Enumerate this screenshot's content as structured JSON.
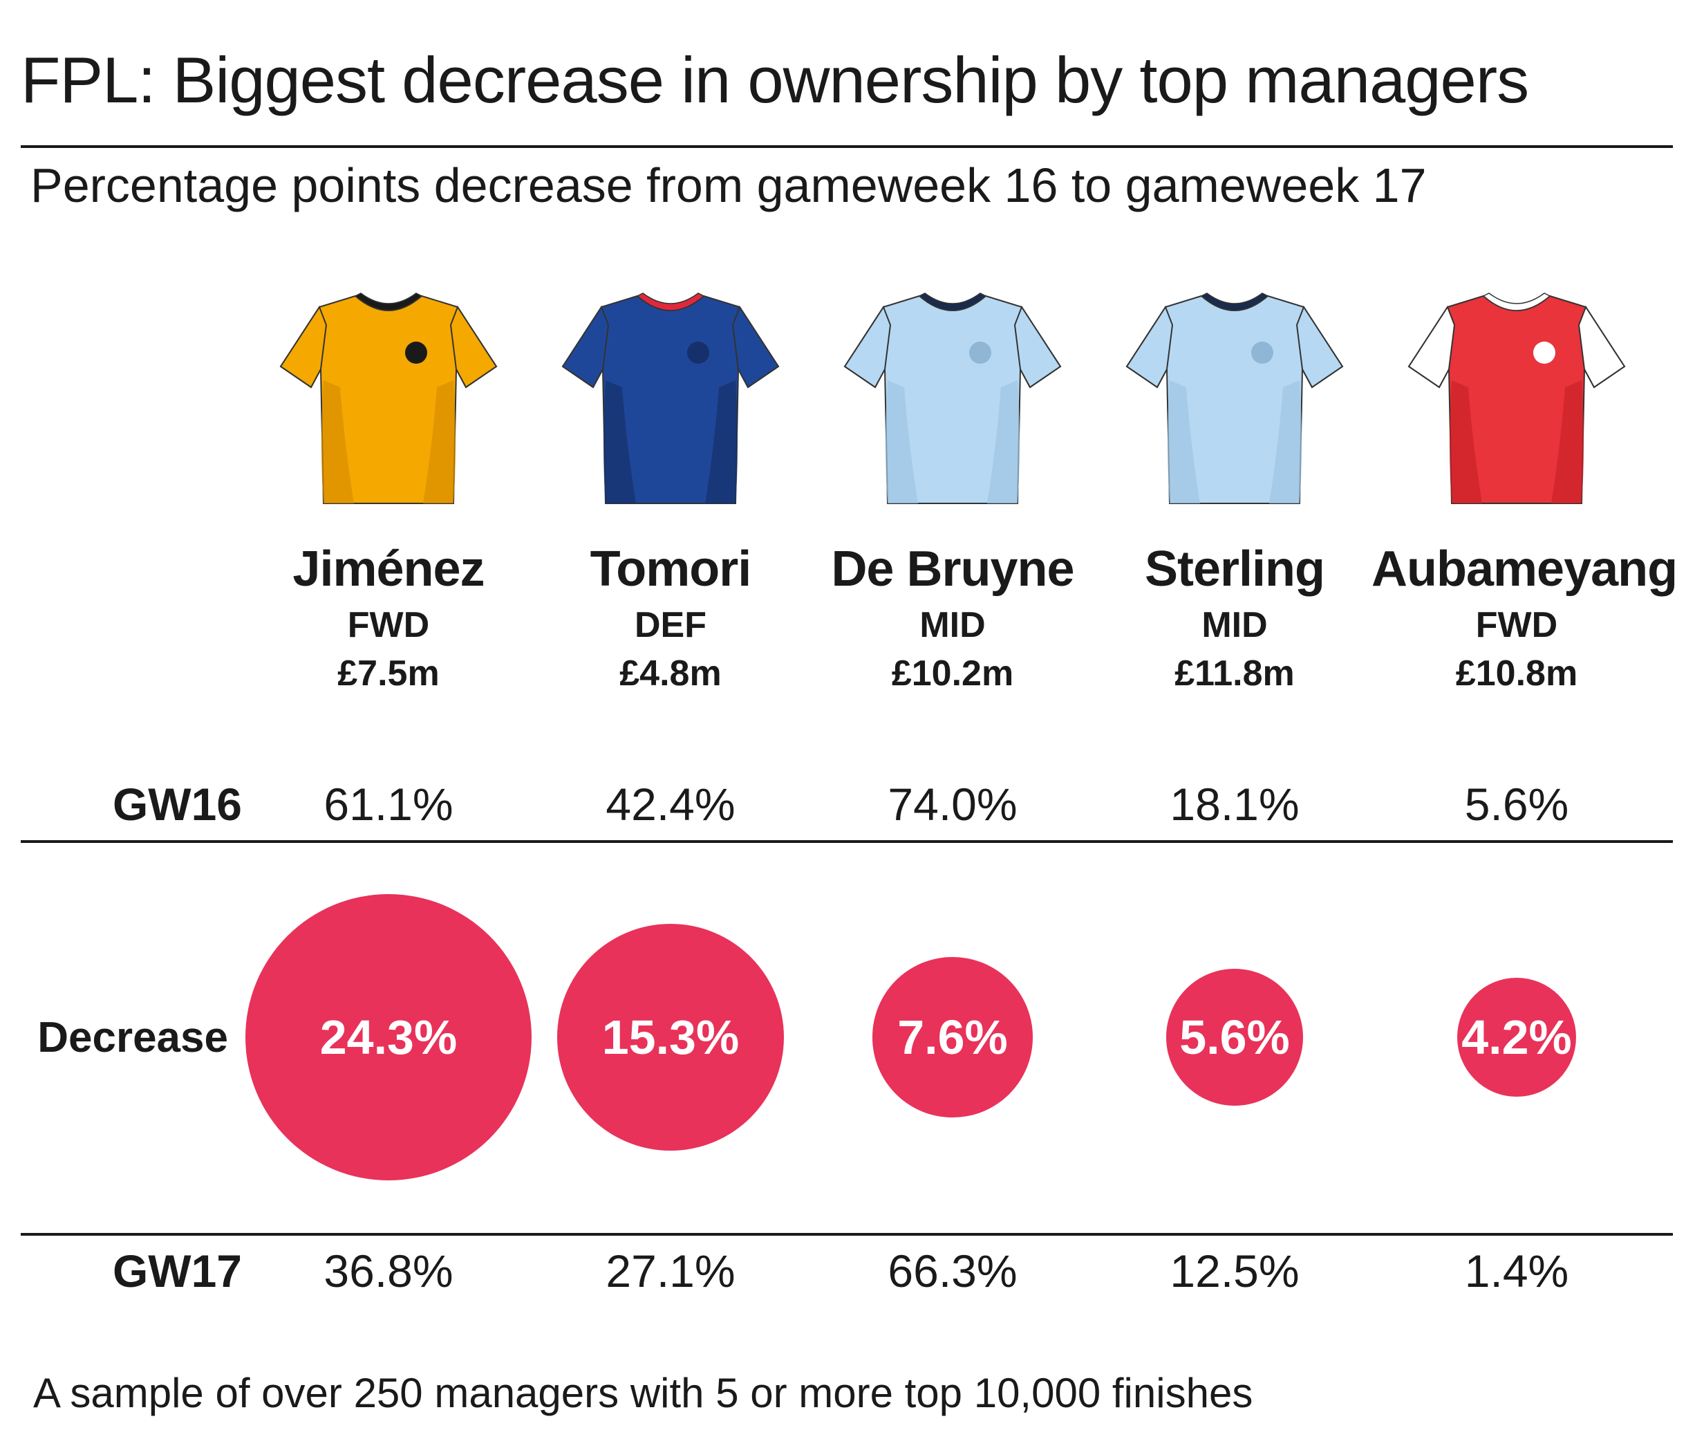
{
  "title": "FPL: Biggest decrease in ownership by top managers",
  "subtitle": "Percentage points decrease from gameweek 16 to gameweek 17",
  "footnote": "A sample of over 250 managers with 5 or more top 10,000 finishes",
  "rows": {
    "gw16": "GW16",
    "decrease": "Decrease",
    "gw17": "GW17"
  },
  "colors": {
    "bubble": "#e8325a",
    "text": "#1a1a1a"
  },
  "players": [
    {
      "name": "Jiménez",
      "position": "FWD",
      "price": "£7.5m",
      "gw16": "61.1%",
      "decrease": "24.3%",
      "gw17": "36.8%",
      "shirt": {
        "icon": "wolves-shirt-icon",
        "body": "#f5a800",
        "shade": "#d98f00",
        "sleeve": "#f5a800",
        "trim": "#f5a800",
        "collar": "#1a1a1a",
        "badge": "#1a1a1a"
      }
    },
    {
      "name": "Tomori",
      "position": "DEF",
      "price": "£4.8m",
      "gw16": "42.4%",
      "decrease": "15.3%",
      "gw17": "27.1%",
      "shirt": {
        "icon": "chelsea-shirt-icon",
        "body": "#1f4799",
        "shade": "#15306b",
        "sleeve": "#1f4799",
        "trim": "#1f4799",
        "collar": "#e0283c",
        "badge": "#15306b"
      }
    },
    {
      "name": "De Bruyne",
      "position": "MID",
      "price": "£10.2m",
      "gw16": "74.0%",
      "decrease": "7.6%",
      "gw17": "66.3%",
      "shirt": {
        "icon": "man-city-shirt-icon",
        "body": "#b6d8f2",
        "shade": "#9fc6e4",
        "sleeve": "#b6d8f2",
        "trim": "#b6d8f2",
        "collar": "#1a2b4c",
        "badge": "#8fb6d4"
      }
    },
    {
      "name": "Sterling",
      "position": "MID",
      "price": "£11.8m",
      "gw16": "18.1%",
      "decrease": "5.6%",
      "gw17": "12.5%",
      "shirt": {
        "icon": "man-city-shirt-icon",
        "body": "#b6d8f2",
        "shade": "#9fc6e4",
        "sleeve": "#b6d8f2",
        "trim": "#b6d8f2",
        "collar": "#1a2b4c",
        "badge": "#8fb6d4"
      }
    },
    {
      "name": "Aubameyang",
      "position": "FWD",
      "price": "£10.8m",
      "gw16": "5.6%",
      "decrease": "4.2%",
      "gw17": "1.4%",
      "shirt": {
        "icon": "arsenal-shirt-icon",
        "body": "#e8343a",
        "shade": "#cc2228",
        "sleeve": "#ffffff",
        "trim": "#e8343a",
        "collar": "#ffffff",
        "badge": "#ffffff"
      }
    }
  ],
  "chart_data": {
    "type": "bubble",
    "title": "FPL: Biggest decrease in ownership by top managers",
    "subtitle": "Percentage points decrease from gameweek 16 to gameweek 17",
    "categories": [
      "Jiménez",
      "Tomori",
      "De Bruyne",
      "Sterling",
      "Aubameyang"
    ],
    "series": [
      {
        "name": "GW16",
        "values": [
          61.1,
          42.4,
          74.0,
          18.1,
          5.6
        ]
      },
      {
        "name": "Decrease",
        "values": [
          24.3,
          15.3,
          7.6,
          5.6,
          4.2
        ]
      },
      {
        "name": "GW17",
        "values": [
          36.8,
          27.1,
          66.3,
          12.5,
          1.4
        ]
      }
    ],
    "unit": "%"
  }
}
